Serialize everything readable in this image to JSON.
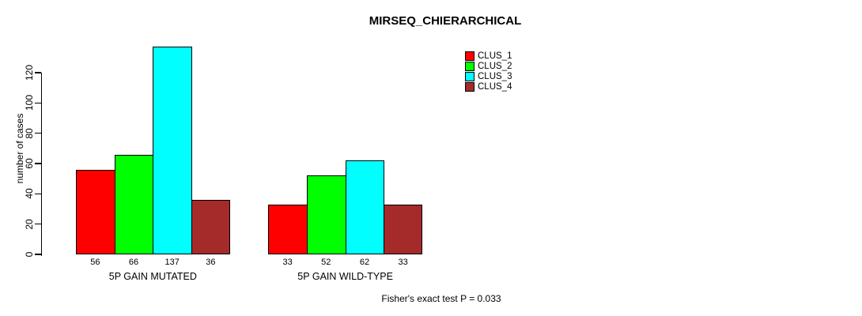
{
  "title": "MIRSEQ_CHIERARCHICAL",
  "annotation": "Fisher's exact test P = 0.033",
  "colors": {
    "clus_1": "#FF0000",
    "clus_2": "#00FF00",
    "clus_3": "#00FFFF",
    "clus_4": "#A52A2A",
    "axis": "#000000",
    "background": "#FFFFFF"
  },
  "chart_data": {
    "type": "bar",
    "title": "MIRSEQ_CHIERARCHICAL",
    "xlabel": "",
    "ylabel": "number of cases",
    "categories": [
      "5P GAIN MUTATED",
      "5P GAIN WILD-TYPE"
    ],
    "series": [
      {
        "name": "CLUS_1",
        "color": "#FF0000",
        "values": [
          56,
          33
        ]
      },
      {
        "name": "CLUS_2",
        "color": "#00FF00",
        "values": [
          66,
          52
        ]
      },
      {
        "name": "CLUS_3",
        "color": "#00FFFF",
        "values": [
          137,
          62
        ]
      },
      {
        "name": "CLUS_4",
        "color": "#A52A2A",
        "values": [
          36,
          33
        ]
      }
    ],
    "bar_value_labels": [
      [
        56,
        66,
        137,
        36
      ],
      [
        33,
        52,
        62,
        33
      ]
    ],
    "yticks": [
      0,
      20,
      40,
      60,
      80,
      100,
      120
    ],
    "ylim": [
      0,
      120
    ],
    "grid": false,
    "legend_position": "top-right",
    "annotation": "Fisher's exact test P = 0.033"
  }
}
